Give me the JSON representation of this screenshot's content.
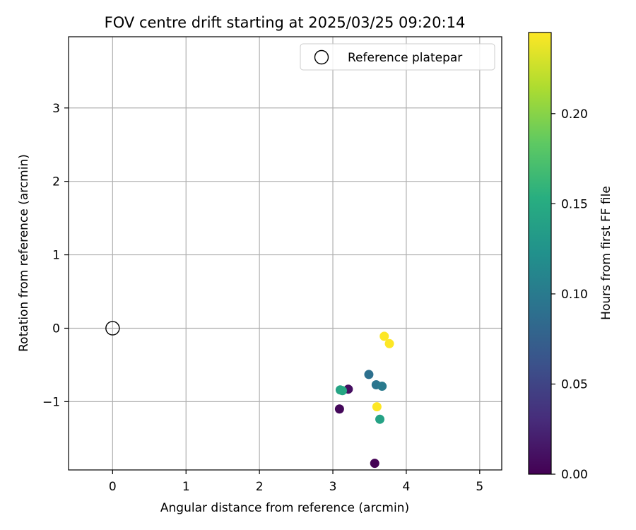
{
  "chart_data": {
    "type": "scatter",
    "title": "FOV centre drift starting at 2025/03/25 09:20:14",
    "xlabel": "Angular distance from reference (arcmin)",
    "ylabel": "Rotation from reference (arcmin)",
    "xlim": [
      -0.6,
      5.3
    ],
    "ylim": [
      -1.93,
      3.97
    ],
    "xticks": [
      0,
      1,
      2,
      3,
      4,
      5
    ],
    "yticks": [
      -1,
      0,
      1,
      2,
      3
    ],
    "xtick_labels": [
      "0",
      "1",
      "2",
      "3",
      "4",
      "5"
    ],
    "ytick_labels": [
      "−1",
      "0",
      "1",
      "2",
      "3"
    ],
    "grid": true,
    "legend": {
      "placement": "top-right",
      "entries": [
        "Reference platepar"
      ]
    },
    "reference": {
      "x": 0,
      "y": 0,
      "marker": "open-circle"
    },
    "colorbar": {
      "label": "Hours from first FF file",
      "colormap": "viridis",
      "range": [
        0.0,
        0.245
      ],
      "ticks": [
        0.0,
        0.05,
        0.1,
        0.15,
        0.2
      ],
      "tick_labels": [
        "0.00",
        "0.05",
        "0.10",
        "0.15",
        "0.20"
      ]
    },
    "points": [
      {
        "x": 3.57,
        "y": -1.84,
        "hours": 0.0
      },
      {
        "x": 3.09,
        "y": -1.1,
        "hours": 0.005
      },
      {
        "x": 3.21,
        "y": -0.83,
        "hours": 0.01
      },
      {
        "x": 3.49,
        "y": -0.63,
        "hours": 0.09
      },
      {
        "x": 3.59,
        "y": -0.77,
        "hours": 0.095
      },
      {
        "x": 3.67,
        "y": -0.79,
        "hours": 0.1
      },
      {
        "x": 3.1,
        "y": -0.84,
        "hours": 0.14
      },
      {
        "x": 3.13,
        "y": -0.85,
        "hours": 0.145
      },
      {
        "x": 3.64,
        "y": -1.24,
        "hours": 0.14
      },
      {
        "x": 3.6,
        "y": -1.07,
        "hours": 0.245
      },
      {
        "x": 3.7,
        "y": -0.11,
        "hours": 0.245
      },
      {
        "x": 3.77,
        "y": -0.21,
        "hours": 0.245
      }
    ]
  }
}
